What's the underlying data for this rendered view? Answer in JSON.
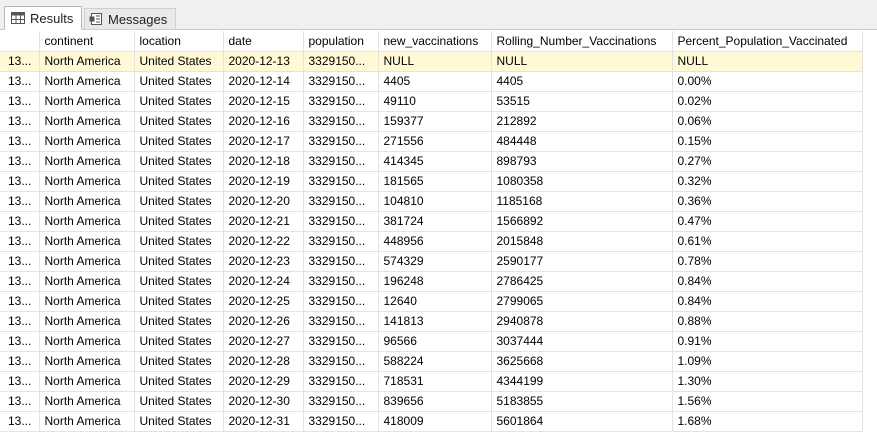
{
  "tabs": {
    "results_label": "Results",
    "messages_label": "Messages"
  },
  "grid": {
    "columns": [
      "continent",
      "location",
      "date",
      "population",
      "new_vaccinations",
      "Rolling_Number_Vaccinations",
      "Percent_Population_Vaccinated"
    ],
    "rows": [
      {
        "num": "13...",
        "continent": "North America",
        "location": "United States",
        "date": "2020-12-13",
        "population": "3329150...",
        "new_vaccinations": "NULL",
        "rolling": "NULL",
        "percent": "NULL"
      },
      {
        "num": "13...",
        "continent": "North America",
        "location": "United States",
        "date": "2020-12-14",
        "population": "3329150...",
        "new_vaccinations": "4405",
        "rolling": "4405",
        "percent": "0.00%"
      },
      {
        "num": "13...",
        "continent": "North America",
        "location": "United States",
        "date": "2020-12-15",
        "population": "3329150...",
        "new_vaccinations": "49110",
        "rolling": "53515",
        "percent": "0.02%"
      },
      {
        "num": "13...",
        "continent": "North America",
        "location": "United States",
        "date": "2020-12-16",
        "population": "3329150...",
        "new_vaccinations": "159377",
        "rolling": "212892",
        "percent": "0.06%"
      },
      {
        "num": "13...",
        "continent": "North America",
        "location": "United States",
        "date": "2020-12-17",
        "population": "3329150...",
        "new_vaccinations": "271556",
        "rolling": "484448",
        "percent": "0.15%"
      },
      {
        "num": "13...",
        "continent": "North America",
        "location": "United States",
        "date": "2020-12-18",
        "population": "3329150...",
        "new_vaccinations": "414345",
        "rolling": "898793",
        "percent": "0.27%"
      },
      {
        "num": "13...",
        "continent": "North America",
        "location": "United States",
        "date": "2020-12-19",
        "population": "3329150...",
        "new_vaccinations": "181565",
        "rolling": "1080358",
        "percent": "0.32%"
      },
      {
        "num": "13...",
        "continent": "North America",
        "location": "United States",
        "date": "2020-12-20",
        "population": "3329150...",
        "new_vaccinations": "104810",
        "rolling": "1185168",
        "percent": "0.36%"
      },
      {
        "num": "13...",
        "continent": "North America",
        "location": "United States",
        "date": "2020-12-21",
        "population": "3329150...",
        "new_vaccinations": "381724",
        "rolling": "1566892",
        "percent": "0.47%"
      },
      {
        "num": "13...",
        "continent": "North America",
        "location": "United States",
        "date": "2020-12-22",
        "population": "3329150...",
        "new_vaccinations": "448956",
        "rolling": "2015848",
        "percent": "0.61%"
      },
      {
        "num": "13...",
        "continent": "North America",
        "location": "United States",
        "date": "2020-12-23",
        "population": "3329150...",
        "new_vaccinations": "574329",
        "rolling": "2590177",
        "percent": "0.78%"
      },
      {
        "num": "13...",
        "continent": "North America",
        "location": "United States",
        "date": "2020-12-24",
        "population": "3329150...",
        "new_vaccinations": "196248",
        "rolling": "2786425",
        "percent": "0.84%"
      },
      {
        "num": "13...",
        "continent": "North America",
        "location": "United States",
        "date": "2020-12-25",
        "population": "3329150...",
        "new_vaccinations": "12640",
        "rolling": "2799065",
        "percent": "0.84%"
      },
      {
        "num": "13...",
        "continent": "North America",
        "location": "United States",
        "date": "2020-12-26",
        "population": "3329150...",
        "new_vaccinations": "141813",
        "rolling": "2940878",
        "percent": "0.88%"
      },
      {
        "num": "13...",
        "continent": "North America",
        "location": "United States",
        "date": "2020-12-27",
        "population": "3329150...",
        "new_vaccinations": "96566",
        "rolling": "3037444",
        "percent": "0.91%"
      },
      {
        "num": "13...",
        "continent": "North America",
        "location": "United States",
        "date": "2020-12-28",
        "population": "3329150...",
        "new_vaccinations": "588224",
        "rolling": "3625668",
        "percent": "1.09%"
      },
      {
        "num": "13...",
        "continent": "North America",
        "location": "United States",
        "date": "2020-12-29",
        "population": "3329150...",
        "new_vaccinations": "718531",
        "rolling": "4344199",
        "percent": "1.30%"
      },
      {
        "num": "13...",
        "continent": "North America",
        "location": "United States",
        "date": "2020-12-30",
        "population": "3329150...",
        "new_vaccinations": "839656",
        "rolling": "5183855",
        "percent": "1.56%"
      },
      {
        "num": "13...",
        "continent": "North America",
        "location": "United States",
        "date": "2020-12-31",
        "population": "3329150...",
        "new_vaccinations": "418009",
        "rolling": "5601864",
        "percent": "1.68%"
      }
    ]
  }
}
